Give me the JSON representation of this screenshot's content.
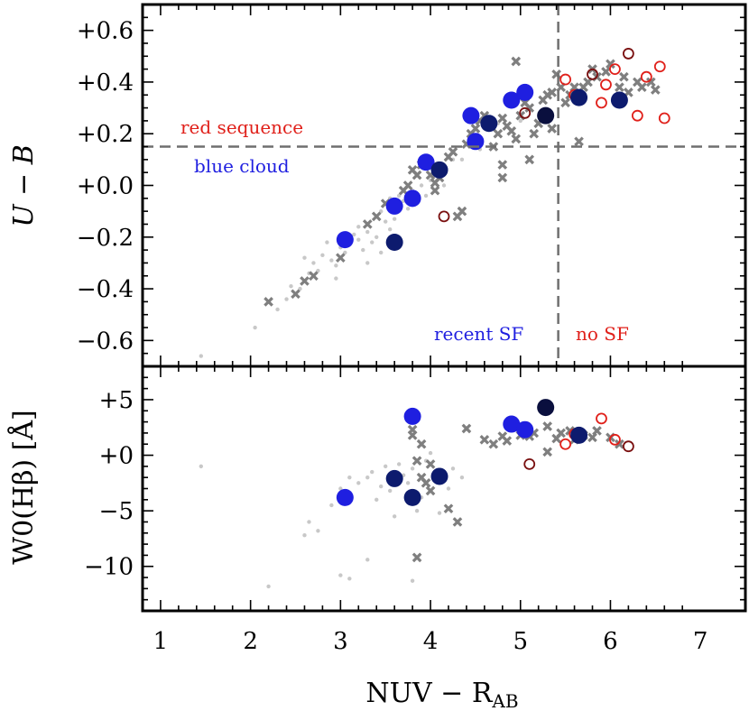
{
  "colors": {
    "blue": "#1f1fe0",
    "dark_blue": "#0d1b6e",
    "navy": "#0a0f3e",
    "red": "#e0201a",
    "dark_red": "#7a1010",
    "gray_cross": "#7f7f7f",
    "gray_dot": "#c8c8c8",
    "dashed": "#6f6f6f"
  },
  "chart_data": [
    {
      "panel": "top",
      "type": "scatter",
      "ylabel": "U − B",
      "xlim": [
        0.8,
        7.5
      ],
      "ylim": [
        -0.7,
        0.7
      ],
      "x_ticks": [
        "1",
        "2",
        "3",
        "4",
        "5",
        "6",
        "7"
      ],
      "y_ticks": [
        "+0.6",
        "+0.4",
        "+0.2",
        "+0.0",
        "−0.2",
        "−0.4",
        "−0.6"
      ],
      "y_tick_values": [
        0.6,
        0.4,
        0.2,
        0.0,
        -0.2,
        -0.4,
        -0.6
      ],
      "reference_lines": {
        "horizontal_y": 0.15,
        "vertical_x": 5.42
      },
      "annotations": [
        {
          "text": "red sequence",
          "color": "red"
        },
        {
          "text": "blue cloud",
          "color": "blue"
        },
        {
          "text": "recent SF",
          "color": "blue"
        },
        {
          "text": "no SF",
          "color": "red"
        }
      ],
      "series": [
        {
          "marker": "filled-circle-blue",
          "points": [
            [
              3.05,
              -0.21
            ],
            [
              3.6,
              -0.08
            ],
            [
              3.8,
              -0.05
            ],
            [
              3.95,
              0.09
            ],
            [
              4.45,
              0.27
            ],
            [
              4.5,
              0.17
            ],
            [
              4.9,
              0.33
            ],
            [
              5.05,
              0.36
            ]
          ]
        },
        {
          "marker": "filled-circle-dark-blue",
          "points": [
            [
              3.6,
              -0.22
            ],
            [
              4.1,
              0.06
            ],
            [
              4.65,
              0.24
            ],
            [
              5.65,
              0.34
            ],
            [
              6.1,
              0.33
            ]
          ]
        },
        {
          "marker": "filled-circle-navy",
          "points": [
            [
              5.28,
              0.27
            ]
          ]
        },
        {
          "marker": "open-circle-red",
          "points": [
            [
              5.5,
              0.41
            ],
            [
              5.6,
              0.35
            ],
            [
              5.9,
              0.32
            ],
            [
              5.95,
              0.39
            ],
            [
              6.05,
              0.45
            ],
            [
              6.3,
              0.27
            ],
            [
              6.4,
              0.42
            ],
            [
              6.55,
              0.46
            ],
            [
              6.6,
              0.26
            ]
          ]
        },
        {
          "marker": "open-circle-dark-red",
          "points": [
            [
              4.15,
              -0.12
            ],
            [
              5.05,
              0.28
            ],
            [
              5.8,
              0.43
            ],
            [
              6.2,
              0.51
            ]
          ]
        },
        {
          "marker": "cross-gray",
          "points": [
            [
              2.2,
              -0.45
            ],
            [
              2.5,
              -0.42
            ],
            [
              2.6,
              -0.37
            ],
            [
              2.7,
              -0.35
            ],
            [
              3.0,
              -0.28
            ],
            [
              3.3,
              -0.15
            ],
            [
              3.4,
              -0.12
            ],
            [
              3.5,
              -0.07
            ],
            [
              3.6,
              -0.08
            ],
            [
              3.7,
              -0.02
            ],
            [
              3.75,
              0.0
            ],
            [
              3.8,
              0.06
            ],
            [
              3.85,
              0.04
            ],
            [
              3.9,
              0.08
            ],
            [
              4.0,
              0.04
            ],
            [
              4.05,
              0.01
            ],
            [
              4.05,
              -0.02
            ],
            [
              4.1,
              0.03
            ],
            [
              4.2,
              0.11
            ],
            [
              4.25,
              0.13
            ],
            [
              4.3,
              -0.12
            ],
            [
              4.35,
              -0.1
            ],
            [
              4.4,
              0.16
            ],
            [
              4.45,
              0.2
            ],
            [
              4.5,
              0.22
            ],
            [
              4.55,
              0.25
            ],
            [
              4.6,
              0.27
            ],
            [
              4.7,
              0.15
            ],
            [
              4.75,
              0.2
            ],
            [
              4.8,
              0.26
            ],
            [
              4.85,
              0.23
            ],
            [
              4.9,
              0.21
            ],
            [
              4.95,
              0.18
            ],
            [
              5.0,
              0.27
            ],
            [
              5.05,
              0.32
            ],
            [
              5.1,
              0.3
            ],
            [
              5.15,
              0.2
            ],
            [
              5.2,
              0.24
            ],
            [
              5.25,
              0.33
            ],
            [
              5.3,
              0.35
            ],
            [
              5.35,
              0.36
            ],
            [
              5.4,
              0.43
            ],
            [
              5.45,
              0.38
            ],
            [
              5.5,
              0.32
            ],
            [
              5.55,
              0.35
            ],
            [
              5.6,
              0.38
            ],
            [
              5.65,
              0.17
            ],
            [
              5.7,
              0.38
            ],
            [
              5.75,
              0.4
            ],
            [
              5.8,
              0.45
            ],
            [
              5.85,
              0.42
            ],
            [
              5.95,
              0.44
            ],
            [
              6.0,
              0.47
            ],
            [
              6.1,
              0.38
            ],
            [
              6.15,
              0.42
            ],
            [
              6.2,
              0.36
            ],
            [
              6.3,
              0.4
            ],
            [
              6.35,
              0.38
            ],
            [
              6.45,
              0.4
            ],
            [
              6.5,
              0.37
            ],
            [
              5.1,
              0.1
            ],
            [
              4.8,
              0.08
            ],
            [
              4.8,
              0.03
            ],
            [
              5.35,
              0.22
            ],
            [
              4.95,
              0.48
            ]
          ]
        },
        {
          "marker": "dot-lightgray",
          "points": [
            [
              1.45,
              -0.66
            ],
            [
              2.05,
              -0.55
            ],
            [
              2.3,
              -0.48
            ],
            [
              2.4,
              -0.44
            ],
            [
              2.45,
              -0.39
            ],
            [
              2.55,
              -0.4
            ],
            [
              2.6,
              -0.28
            ],
            [
              2.65,
              -0.34
            ],
            [
              2.7,
              -0.3
            ],
            [
              2.75,
              -0.33
            ],
            [
              2.8,
              -0.27
            ],
            [
              2.85,
              -0.22
            ],
            [
              2.9,
              -0.29
            ],
            [
              2.95,
              -0.31
            ],
            [
              3.0,
              -0.24
            ],
            [
              3.05,
              -0.26
            ],
            [
              3.1,
              -0.22
            ],
            [
              3.15,
              -0.19
            ],
            [
              3.2,
              -0.21
            ],
            [
              3.25,
              -0.25
            ],
            [
              3.3,
              -0.18
            ],
            [
              3.35,
              -0.22
            ],
            [
              3.4,
              -0.2
            ],
            [
              3.45,
              -0.1
            ],
            [
              3.5,
              -0.14
            ],
            [
              3.55,
              -0.17
            ],
            [
              3.6,
              -0.13
            ],
            [
              3.65,
              -0.04
            ],
            [
              3.7,
              -0.06
            ],
            [
              3.75,
              -0.09
            ],
            [
              3.8,
              -0.02
            ],
            [
              3.85,
              -0.06
            ],
            [
              3.9,
              0.0
            ],
            [
              3.95,
              -0.04
            ],
            [
              4.0,
              0.02
            ],
            [
              4.1,
              0.07
            ],
            [
              4.15,
              0.0
            ],
            [
              4.25,
              0.1
            ],
            [
              4.35,
              0.1
            ],
            [
              4.55,
              0.14
            ],
            [
              4.75,
              0.24
            ],
            [
              5.0,
              0.25
            ],
            [
              2.95,
              -0.36
            ],
            [
              3.3,
              -0.3
            ],
            [
              3.45,
              -0.26
            ],
            [
              3.2,
              -0.16
            ],
            [
              3.55,
              -0.05
            ]
          ]
        }
      ]
    },
    {
      "panel": "bottom",
      "type": "scatter",
      "ylabel": "W0(Hβ) [Å]",
      "xlabel": "NUV − R",
      "xlabel_subscript": "AB",
      "xlim": [
        0.8,
        7.5
      ],
      "ylim": [
        -14,
        8
      ],
      "x_ticks": [
        "1",
        "2",
        "3",
        "4",
        "5",
        "6",
        "7"
      ],
      "y_ticks": [
        "+5",
        "+0",
        "−5",
        "−10"
      ],
      "y_tick_values": [
        5,
        0,
        -5,
        -10
      ],
      "series": [
        {
          "marker": "filled-circle-blue",
          "points": [
            [
              3.05,
              -3.8
            ],
            [
              3.8,
              3.5
            ],
            [
              4.9,
              2.8
            ],
            [
              5.05,
              2.3
            ]
          ]
        },
        {
          "marker": "filled-circle-dark-blue",
          "points": [
            [
              3.6,
              -2.1
            ],
            [
              3.8,
              -3.8
            ],
            [
              4.1,
              -1.9
            ],
            [
              5.65,
              1.8
            ]
          ]
        },
        {
          "marker": "filled-circle-navy",
          "points": [
            [
              5.28,
              4.3
            ]
          ]
        },
        {
          "marker": "open-circle-red",
          "points": [
            [
              5.5,
              1.0
            ],
            [
              5.6,
              1.9
            ],
            [
              5.9,
              3.3
            ],
            [
              6.05,
              1.4
            ]
          ]
        },
        {
          "marker": "open-circle-dark-red",
          "points": [
            [
              5.1,
              -0.8
            ],
            [
              6.2,
              0.8
            ]
          ]
        },
        {
          "marker": "cross-gray",
          "points": [
            [
              3.8,
              2.3
            ],
            [
              3.8,
              1.8
            ],
            [
              3.9,
              1.0
            ],
            [
              3.85,
              -0.5
            ],
            [
              3.9,
              -2.0
            ],
            [
              3.95,
              -2.5
            ],
            [
              4.0,
              -3.2
            ],
            [
              4.0,
              -0.8
            ],
            [
              4.2,
              -4.8
            ],
            [
              4.3,
              -6.0
            ],
            [
              3.85,
              -9.2
            ],
            [
              4.4,
              2.4
            ],
            [
              4.6,
              1.4
            ],
            [
              4.7,
              1.0
            ],
            [
              4.85,
              1.3
            ],
            [
              5.0,
              1.8
            ],
            [
              5.1,
              1.7
            ],
            [
              5.15,
              2.0
            ],
            [
              5.3,
              0.3
            ],
            [
              5.4,
              1.5
            ],
            [
              5.45,
              2.0
            ],
            [
              5.55,
              2.2
            ],
            [
              5.6,
              1.4
            ],
            [
              5.7,
              1.8
            ],
            [
              5.8,
              1.6
            ],
            [
              5.85,
              2.2
            ],
            [
              6.0,
              1.6
            ],
            [
              6.1,
              1.0
            ],
            [
              5.3,
              2.6
            ],
            [
              4.8,
              1.7
            ]
          ]
        },
        {
          "marker": "dot-lightgray",
          "points": [
            [
              1.45,
              -1.0
            ],
            [
              2.2,
              -11.8
            ],
            [
              2.6,
              -7.2
            ],
            [
              2.65,
              -6.0
            ],
            [
              2.9,
              -4.5
            ],
            [
              3.0,
              -3.0
            ],
            [
              3.0,
              -10.8
            ],
            [
              3.1,
              -11.1
            ],
            [
              3.2,
              -2.5
            ],
            [
              3.3,
              -2.0
            ],
            [
              3.35,
              -1.5
            ],
            [
              3.4,
              -4.0
            ],
            [
              3.45,
              -2.8
            ],
            [
              3.5,
              -1.0
            ],
            [
              3.55,
              -3.2
            ],
            [
              3.6,
              -5.5
            ],
            [
              3.65,
              -0.8
            ],
            [
              3.7,
              -1.8
            ],
            [
              3.75,
              -2.5
            ],
            [
              3.8,
              -1.2
            ],
            [
              3.85,
              -5.0
            ],
            [
              3.9,
              -3.8
            ],
            [
              3.95,
              -0.5
            ],
            [
              4.0,
              0.2
            ],
            [
              4.1,
              -5.2
            ],
            [
              4.2,
              -3.0
            ],
            [
              4.25,
              -1.2
            ],
            [
              4.35,
              -2.0
            ],
            [
              2.75,
              -6.8
            ],
            [
              3.3,
              -9.4
            ],
            [
              3.8,
              -11.3
            ],
            [
              3.1,
              -2.0
            ]
          ]
        }
      ]
    }
  ]
}
